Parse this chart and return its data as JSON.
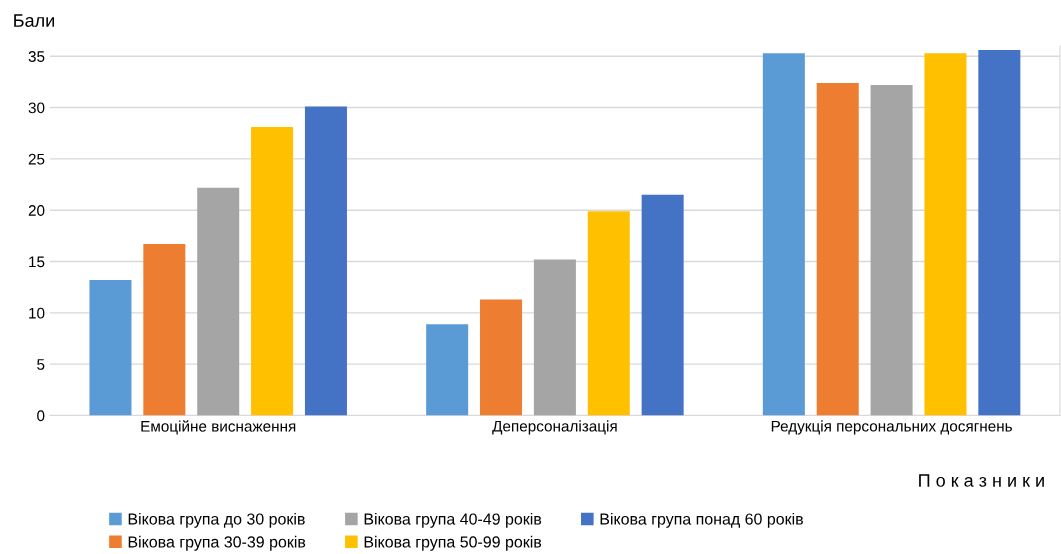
{
  "chart_data": {
    "type": "bar",
    "ylabel": "Бали",
    "xlabel": "П о к а з н и к и",
    "categories": [
      "Емоційне виснаження",
      "Деперсоналізація",
      "Редукція персональних досягнень"
    ],
    "series": [
      {
        "name": "Вікова група до 30 років",
        "color": "#5b9bd5",
        "values": [
          13.2,
          8.9,
          35.3
        ]
      },
      {
        "name": "Вікова група 30-39 років",
        "color": "#ed7d31",
        "values": [
          16.7,
          11.3,
          32.4
        ]
      },
      {
        "name": "Вікова група 40-49 років",
        "color": "#a5a5a5",
        "values": [
          22.2,
          15.2,
          32.2
        ]
      },
      {
        "name": "Вікова група 50-99 років",
        "color": "#ffc000",
        "values": [
          28.1,
          19.9,
          35.3
        ]
      },
      {
        "name": "Вікова група понад 60 років",
        "color": "#4472c4",
        "values": [
          30.1,
          21.5,
          35.6
        ]
      }
    ],
    "ylim": [
      0,
      36
    ],
    "yticks": [
      0,
      5,
      10,
      15,
      20,
      25,
      30,
      35
    ],
    "grid": "y",
    "legend": "bottom"
  }
}
